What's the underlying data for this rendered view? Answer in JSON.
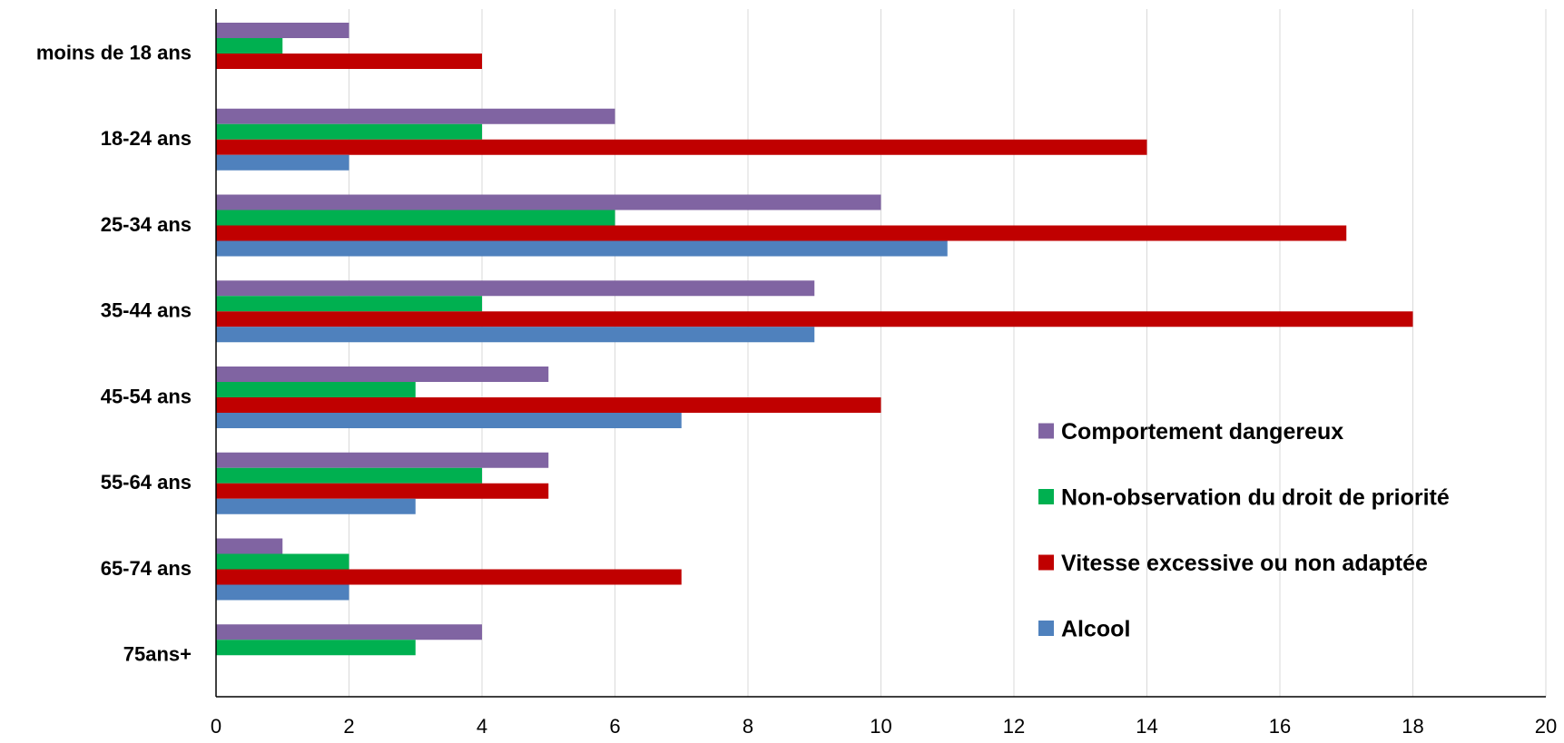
{
  "chart_data": {
    "type": "bar",
    "orientation": "horizontal",
    "categories": [
      "moins de 18 ans",
      "18-24 ans",
      "25-34 ans",
      "35-44 ans",
      "45-54 ans",
      "55-64 ans",
      "65-74 ans",
      "75ans+"
    ],
    "series": [
      {
        "name": "Comportement dangereux",
        "color": "#8064a2",
        "values": [
          2,
          6,
          10,
          9,
          5,
          5,
          1,
          4
        ]
      },
      {
        "name": "Non-observation du droit de priorité",
        "color": "#00b050",
        "values": [
          1,
          4,
          6,
          4,
          3,
          4,
          2,
          3
        ]
      },
      {
        "name": "Vitesse excessive ou non adaptée",
        "color": "#c00000",
        "values": [
          4,
          14,
          17,
          18,
          10,
          5,
          7,
          0
        ]
      },
      {
        "name": "Alcool",
        "color": "#4f81bd",
        "values": [
          0,
          2,
          11,
          9,
          7,
          3,
          2,
          0
        ]
      }
    ],
    "xlim": [
      0,
      20
    ],
    "xticks": [
      0,
      2,
      4,
      6,
      8,
      10,
      12,
      14,
      16,
      18,
      20
    ],
    "grid": true,
    "legend_position": "right"
  }
}
